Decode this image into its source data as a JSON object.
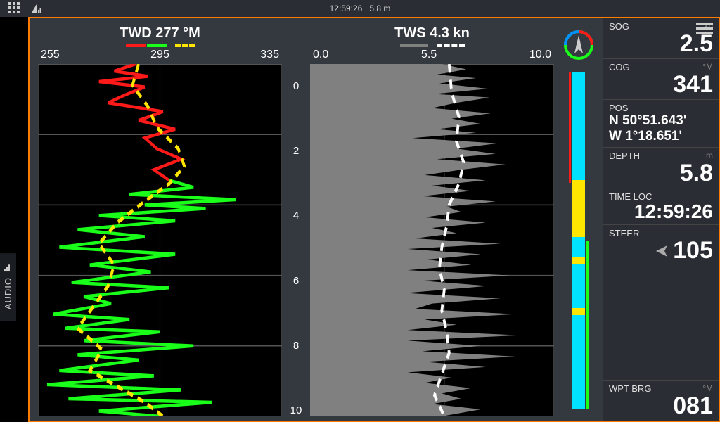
{
  "topbar": {
    "time": "12:59:26",
    "depth": "5.8 m"
  },
  "audio_tab": "AUDIO",
  "twd_chart": {
    "title": "TWD 277 °M",
    "x_ticks": [
      "255",
      "295",
      "335"
    ],
    "x_min": 255,
    "x_max": 335,
    "legend_colors": [
      "#ff1a1a",
      "#1aff1a",
      "#ffe600"
    ],
    "grid_color": "#555555",
    "bg": "#000000",
    "red_line_color": "#ff1a1a",
    "green_line_color": "#1aff1a",
    "yellow_line_color": "#ffe600",
    "line_width": 2,
    "yellow_dash": "8,6",
    "red_series": [
      [
        287,
        0
      ],
      [
        280,
        0.2
      ],
      [
        291,
        0.35
      ],
      [
        275,
        0.5
      ],
      [
        290,
        0.65
      ],
      [
        283,
        0.9
      ],
      [
        278,
        1.1
      ],
      [
        296,
        1.35
      ],
      [
        288,
        1.6
      ],
      [
        300,
        1.85
      ],
      [
        290,
        2.1
      ],
      [
        294,
        2.4
      ],
      [
        302,
        2.7
      ],
      [
        293,
        3.0
      ],
      [
        298,
        3.3
      ]
    ],
    "green_series": [
      [
        298,
        3.3
      ],
      [
        306,
        3.5
      ],
      [
        285,
        3.7
      ],
      [
        320,
        3.85
      ],
      [
        290,
        4.0
      ],
      [
        310,
        4.1
      ],
      [
        275,
        4.3
      ],
      [
        300,
        4.45
      ],
      [
        268,
        4.7
      ],
      [
        290,
        4.9
      ],
      [
        262,
        5.2
      ],
      [
        300,
        5.4
      ],
      [
        272,
        5.7
      ],
      [
        292,
        5.9
      ],
      [
        266,
        6.2
      ],
      [
        298,
        6.35
      ],
      [
        270,
        6.6
      ],
      [
        279,
        6.8
      ],
      [
        260,
        7.1
      ],
      [
        285,
        7.25
      ],
      [
        264,
        7.5
      ],
      [
        295,
        7.6
      ],
      [
        270,
        7.85
      ],
      [
        306,
        8.0
      ],
      [
        268,
        8.25
      ],
      [
        288,
        8.4
      ],
      [
        262,
        8.7
      ],
      [
        293,
        8.85
      ],
      [
        258,
        9.1
      ],
      [
        302,
        9.25
      ],
      [
        265,
        9.5
      ],
      [
        312,
        9.6
      ],
      [
        275,
        9.85
      ],
      [
        295,
        10.0
      ]
    ],
    "yellow_series": [
      [
        288,
        0
      ],
      [
        286,
        0.6
      ],
      [
        291,
        1.2
      ],
      [
        294,
        1.8
      ],
      [
        301,
        2.4
      ],
      [
        303,
        2.9
      ],
      [
        298,
        3.4
      ],
      [
        290,
        3.9
      ],
      [
        281,
        4.5
      ],
      [
        275,
        5.1
      ],
      [
        280,
        5.7
      ],
      [
        278,
        6.3
      ],
      [
        273,
        6.9
      ],
      [
        268,
        7.5
      ],
      [
        276,
        8.1
      ],
      [
        272,
        8.7
      ],
      [
        282,
        9.2
      ],
      [
        290,
        9.6
      ],
      [
        296,
        10.0
      ]
    ]
  },
  "tws_chart": {
    "title": "TWS 4.3 kn",
    "x_ticks": [
      "0.0",
      "5.5",
      "10.0"
    ],
    "x_min": 0,
    "x_max": 10,
    "legend_colors": [
      "#808080",
      "#ffffff"
    ],
    "grid_color": "#555555",
    "bg": "#000000",
    "fill_color": "#808080",
    "avg_line_color": "#ffffff",
    "avg_dash": "8,6",
    "line_width": 2,
    "fill_series": [
      [
        5.4,
        0
      ],
      [
        6.4,
        0.15
      ],
      [
        5.2,
        0.3
      ],
      [
        6.8,
        0.4
      ],
      [
        5.3,
        0.55
      ],
      [
        7.3,
        0.7
      ],
      [
        5.1,
        0.85
      ],
      [
        7.35,
        0.95
      ],
      [
        6.0,
        1.1
      ],
      [
        5.0,
        1.25
      ],
      [
        7.4,
        1.4
      ],
      [
        5.8,
        1.55
      ],
      [
        7.0,
        1.7
      ],
      [
        5.2,
        1.85
      ],
      [
        6.8,
        1.95
      ],
      [
        4.2,
        2.1
      ],
      [
        7.7,
        2.25
      ],
      [
        6.0,
        2.4
      ],
      [
        7.6,
        2.55
      ],
      [
        5.2,
        2.7
      ],
      [
        8.0,
        2.85
      ],
      [
        6.2,
        3.0
      ],
      [
        4.7,
        3.15
      ],
      [
        7.2,
        3.3
      ],
      [
        5.0,
        3.45
      ],
      [
        6.6,
        3.6
      ],
      [
        4.6,
        3.75
      ],
      [
        7.6,
        3.9
      ],
      [
        5.6,
        4.05
      ],
      [
        6.2,
        4.2
      ],
      [
        4.7,
        4.35
      ],
      [
        7.2,
        4.5
      ],
      [
        5.0,
        4.65
      ],
      [
        6.0,
        4.8
      ],
      [
        4.3,
        4.95
      ],
      [
        7.8,
        5.1
      ],
      [
        4.0,
        5.25
      ],
      [
        7.0,
        5.4
      ],
      [
        4.8,
        5.55
      ],
      [
        6.6,
        5.7
      ],
      [
        4.0,
        5.85
      ],
      [
        8.2,
        6.0
      ],
      [
        4.6,
        6.15
      ],
      [
        7.3,
        6.3
      ],
      [
        3.9,
        6.5
      ],
      [
        7.8,
        6.65
      ],
      [
        5.0,
        6.8
      ],
      [
        4.3,
        6.95
      ],
      [
        8.4,
        7.1
      ],
      [
        4.7,
        7.25
      ],
      [
        6.0,
        7.4
      ],
      [
        4.0,
        7.55
      ],
      [
        8.6,
        7.7
      ],
      [
        4.0,
        7.85
      ],
      [
        7.0,
        8.0
      ],
      [
        4.6,
        8.15
      ],
      [
        8.4,
        8.3
      ],
      [
        4.7,
        8.45
      ],
      [
        7.2,
        8.6
      ],
      [
        4.0,
        8.75
      ],
      [
        5.8,
        8.9
      ],
      [
        4.7,
        9.05
      ],
      [
        6.6,
        9.2
      ],
      [
        5.4,
        9.35
      ],
      [
        6.2,
        9.5
      ],
      [
        5.0,
        9.65
      ],
      [
        7.0,
        9.8
      ],
      [
        5.4,
        10.0
      ]
    ],
    "avg_series": [
      [
        5.7,
        0
      ],
      [
        5.8,
        0.8
      ],
      [
        6.1,
        1.5
      ],
      [
        6.0,
        2.2
      ],
      [
        6.3,
        2.8
      ],
      [
        6.1,
        3.4
      ],
      [
        5.7,
        4.0
      ],
      [
        5.6,
        4.6
      ],
      [
        5.4,
        5.2
      ],
      [
        5.3,
        5.8
      ],
      [
        5.5,
        6.4
      ],
      [
        5.4,
        7.0
      ],
      [
        5.6,
        7.6
      ],
      [
        5.7,
        8.2
      ],
      [
        5.4,
        8.8
      ],
      [
        5.1,
        9.4
      ],
      [
        5.5,
        10.0
      ]
    ]
  },
  "y_axis": {
    "ticks": [
      "0",
      "2",
      "4",
      "6",
      "8",
      "10"
    ],
    "min": 0,
    "max": 10
  },
  "tack_bar": {
    "main_color": "#00e0ff",
    "left_line_color": "#ff1a1a",
    "right_line_color": "#1aff1a",
    "left_line_top_pct": 0,
    "left_line_height_pct": 33,
    "right_line_top_pct": 50,
    "right_line_height_pct": 50,
    "yellow_band_top_pct": 32,
    "yellow_band_height_pct": 17,
    "yellow2_top_pct": 55,
    "yellow2_height_pct": 2,
    "yellow3_top_pct": 70,
    "yellow3_height_pct": 2,
    "yellow_color": "#ffe600"
  },
  "data": {
    "sog": {
      "label": "SOG",
      "unit": "kn",
      "value": "2.5"
    },
    "cog": {
      "label": "COG",
      "unit": "°M",
      "value": "341"
    },
    "pos": {
      "label": "POS",
      "lat": "N  50°51.643'",
      "lon": "W  1°18.651'"
    },
    "depth": {
      "label": "DEPTH",
      "unit": "m",
      "value": "5.8"
    },
    "time": {
      "label": "TIME LOC",
      "value": "12:59:26"
    },
    "steer": {
      "label": "STEER",
      "value": "105"
    },
    "wpt": {
      "label": "WPT BRG",
      "unit": "°M",
      "value": "081"
    }
  }
}
